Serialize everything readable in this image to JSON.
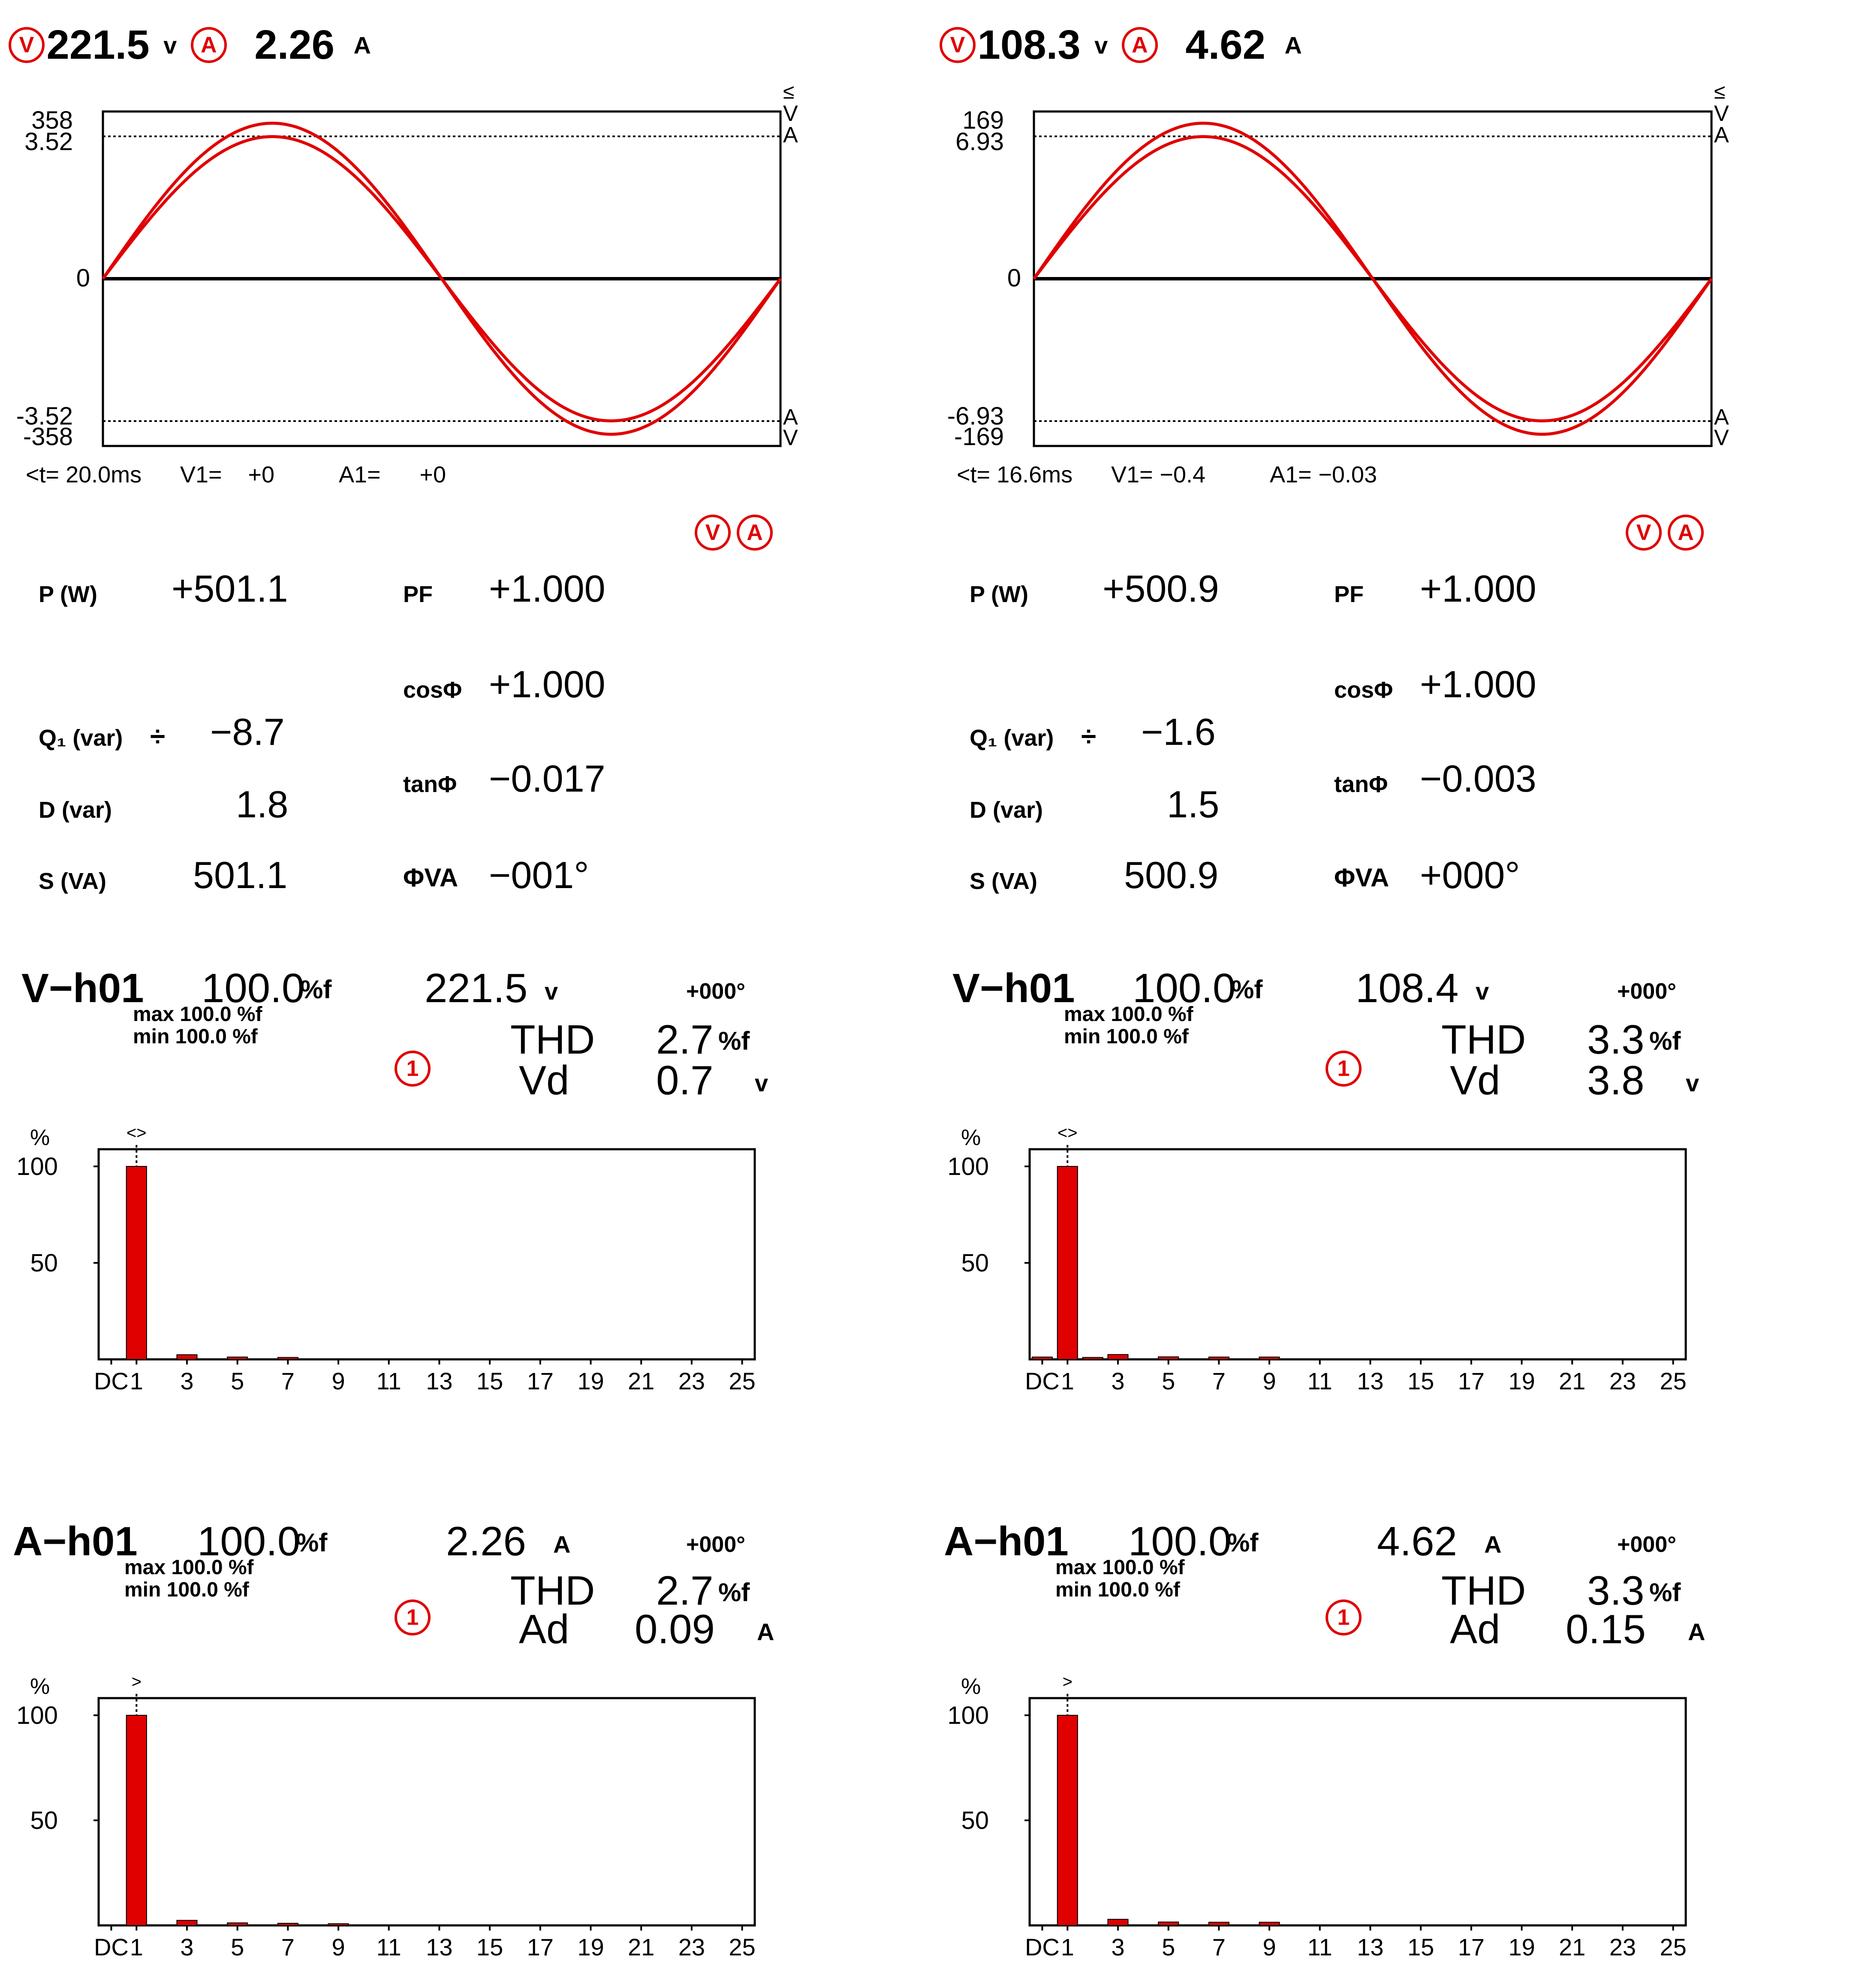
{
  "colors": {
    "accent": "#e00000",
    "grid": "#000000"
  },
  "panels": [
    {
      "header": {
        "v_icon": "V",
        "voltage": "221.5",
        "v_unit": "v",
        "a_icon": "A",
        "current": "2.26",
        "a_unit": "A"
      },
      "waveform": {
        "type": "line",
        "y_labels": {
          "v_max": "358",
          "a_max": "3.52",
          "zero": "0",
          "a_min": "-3.52",
          "v_min": "-358"
        },
        "right_labels": {
          "top_cursor": "≤",
          "top_v": "V",
          "top_a": "A",
          "bot_a": "A",
          "bot_v": "V"
        },
        "cursor": {
          "time": "<t= 20.0ms",
          "v_label": "V1=",
          "v_value": "+0",
          "a_label": "A1=",
          "a_value": "+0"
        },
        "voltage_amp": 0.93,
        "current_amp": 0.85
      },
      "power": {
        "icons": [
          "V",
          "A"
        ],
        "p_label": "P (W)",
        "p_value": "+501.1",
        "pf_label": "PF",
        "pf_value": "+1.000",
        "cos_label": "cosΦ",
        "cos_value": "+1.000",
        "q_label": "Q₁ (var)",
        "q_symbol": "÷",
        "q_value": "−8.7",
        "tan_label": "tanΦ",
        "tan_value": "−0.017",
        "d_label": "D (var)",
        "d_value": "1.8",
        "s_label": "S (VA)",
        "s_value": "501.1",
        "phi_label": "ΦVA",
        "phi_value": "−001°"
      },
      "v_harm": {
        "title": "V−h01",
        "pct": "100.0",
        "pct_unit": "%f",
        "rms": "221.5",
        "rms_unit": "v",
        "phase": "+000°",
        "max_line": "max 100.0 %f",
        "min_line": "min 100.0 %f",
        "circle": "1",
        "thd_label": "THD",
        "thd_value": "2.7",
        "thd_unit": "%f",
        "d_label": "Vd",
        "d_value": "0.7",
        "d_unit": "v"
      },
      "a_harm": {
        "title": "A−h01",
        "pct": "100.0",
        "pct_unit": "%f",
        "rms": "2.26",
        "rms_unit": "A",
        "phase": "+000°",
        "max_line": "max 100.0 %f",
        "min_line": "min 100.0 %f",
        "circle": "1",
        "thd_label": "THD",
        "thd_value": "2.7",
        "thd_unit": "%f",
        "d_label": "Ad",
        "d_value": "0.09",
        "d_unit": "A"
      }
    },
    {
      "header": {
        "v_icon": "V",
        "voltage": "108.3",
        "v_unit": "v",
        "a_icon": "A",
        "current": "4.62",
        "a_unit": "A"
      },
      "waveform": {
        "type": "line",
        "y_labels": {
          "v_max": "169",
          "a_max": "6.93",
          "zero": "0",
          "a_min": "-6.93",
          "v_min": "-169"
        },
        "right_labels": {
          "top_cursor": "≤",
          "top_v": "V",
          "top_a": "A",
          "bot_a": "A",
          "bot_v": "V"
        },
        "cursor": {
          "time": "<t= 16.6ms",
          "v_label": "V1=",
          "v_value": "−0.4",
          "a_label": "A1=",
          "a_value": "−0.03"
        },
        "voltage_amp": 0.93,
        "current_amp": 0.85
      },
      "power": {
        "icons": [
          "V",
          "A"
        ],
        "p_label": "P (W)",
        "p_value": "+500.9",
        "pf_label": "PF",
        "pf_value": "+1.000",
        "cos_label": "cosΦ",
        "cos_value": "+1.000",
        "q_label": "Q₁ (var)",
        "q_symbol": "÷",
        "q_value": "−1.6",
        "tan_label": "tanΦ",
        "tan_value": "−0.003",
        "d_label": "D (var)",
        "d_value": "1.5",
        "s_label": "S (VA)",
        "s_value": "500.9",
        "phi_label": "ΦVA",
        "phi_value": "+000°"
      },
      "v_harm": {
        "title": "V−h01",
        "pct": "100.0",
        "pct_unit": "%f",
        "rms": "108.4",
        "rms_unit": "v",
        "phase": "+000°",
        "max_line": "max 100.0 %f",
        "min_line": "min 100.0 %f",
        "circle": "1",
        "thd_label": "THD",
        "thd_value": "3.3",
        "thd_unit": "%f",
        "d_label": "Vd",
        "d_value": "3.8",
        "d_unit": "v"
      },
      "a_harm": {
        "title": "A−h01",
        "pct": "100.0",
        "pct_unit": "%f",
        "rms": "4.62",
        "rms_unit": "A",
        "phase": "+000°",
        "max_line": "max 100.0 %f",
        "min_line": "min 100.0 %f",
        "circle": "1",
        "thd_label": "THD",
        "thd_value": "3.3",
        "thd_unit": "%f",
        "d_label": "Ad",
        "d_value": "0.15",
        "d_unit": "A"
      }
    }
  ],
  "chart_data": [
    {
      "type": "bar",
      "panel": 0,
      "quantity": "V",
      "ylabel": "%",
      "ylim": [
        0,
        100
      ],
      "yticks": [
        "100",
        "50"
      ],
      "marker": "<>",
      "categories": [
        "DC",
        "1",
        "2",
        "3",
        "4",
        "5",
        "6",
        "7",
        "8",
        "9",
        "10",
        "11",
        "12",
        "13",
        "14",
        "15",
        "16",
        "17",
        "18",
        "19",
        "20",
        "21",
        "22",
        "23",
        "24",
        "25"
      ],
      "xticks": [
        "DC",
        "1",
        "3",
        "5",
        "7",
        "9",
        "11",
        "13",
        "15",
        "17",
        "19",
        "21",
        "23",
        "25"
      ],
      "values": [
        0,
        100,
        0,
        2.4,
        0,
        1.2,
        0,
        1.0,
        0,
        0,
        0,
        0,
        0,
        0,
        0,
        0,
        0,
        0,
        0,
        0,
        0,
        0,
        0,
        0,
        0,
        0
      ]
    },
    {
      "type": "bar",
      "panel": 0,
      "quantity": "A",
      "ylabel": "%",
      "ylim": [
        0,
        100
      ],
      "yticks": [
        "100",
        "50"
      ],
      "marker": ">",
      "categories": [
        "DC",
        "1",
        "2",
        "3",
        "4",
        "5",
        "6",
        "7",
        "8",
        "9",
        "10",
        "11",
        "12",
        "13",
        "14",
        "15",
        "16",
        "17",
        "18",
        "19",
        "20",
        "21",
        "22",
        "23",
        "24",
        "25"
      ],
      "xticks": [
        "DC",
        "1",
        "3",
        "5",
        "7",
        "9",
        "11",
        "13",
        "15",
        "17",
        "19",
        "21",
        "23",
        "25"
      ],
      "values": [
        0,
        100,
        0,
        2.4,
        0,
        1.2,
        0,
        1.0,
        0,
        0.8,
        0,
        0,
        0,
        0,
        0,
        0,
        0,
        0,
        0,
        0,
        0,
        0,
        0,
        0,
        0,
        0
      ]
    },
    {
      "type": "bar",
      "panel": 1,
      "quantity": "V",
      "ylabel": "%",
      "ylim": [
        0,
        100
      ],
      "yticks": [
        "100",
        "50"
      ],
      "marker": "<>",
      "categories": [
        "DC",
        "1",
        "2",
        "3",
        "4",
        "5",
        "6",
        "7",
        "8",
        "9",
        "10",
        "11",
        "12",
        "13",
        "14",
        "15",
        "16",
        "17",
        "18",
        "19",
        "20",
        "21",
        "22",
        "23",
        "24",
        "25"
      ],
      "xticks": [
        "DC",
        "1",
        "3",
        "5",
        "7",
        "9",
        "11",
        "13",
        "15",
        "17",
        "19",
        "21",
        "23",
        "25"
      ],
      "values": [
        1.2,
        100,
        1.0,
        2.5,
        0,
        1.3,
        0,
        1.2,
        0,
        1.2,
        0,
        0,
        0,
        0,
        0,
        0,
        0,
        0,
        0,
        0,
        0,
        0,
        0,
        0,
        0,
        0
      ]
    },
    {
      "type": "bar",
      "panel": 1,
      "quantity": "A",
      "ylabel": "%",
      "ylim": [
        0,
        100
      ],
      "yticks": [
        "100",
        "50"
      ],
      "marker": ">",
      "categories": [
        "DC",
        "1",
        "2",
        "3",
        "4",
        "5",
        "6",
        "7",
        "8",
        "9",
        "10",
        "11",
        "12",
        "13",
        "14",
        "15",
        "16",
        "17",
        "18",
        "19",
        "20",
        "21",
        "22",
        "23",
        "24",
        "25"
      ],
      "xticks": [
        "DC",
        "1",
        "3",
        "5",
        "7",
        "9",
        "11",
        "13",
        "15",
        "17",
        "19",
        "21",
        "23",
        "25"
      ],
      "values": [
        0,
        100,
        0,
        2.9,
        0,
        1.6,
        0,
        1.5,
        0,
        1.5,
        0,
        0,
        0,
        0,
        0,
        0,
        0,
        0,
        0,
        0,
        0,
        0,
        0,
        0,
        0,
        0
      ]
    }
  ]
}
